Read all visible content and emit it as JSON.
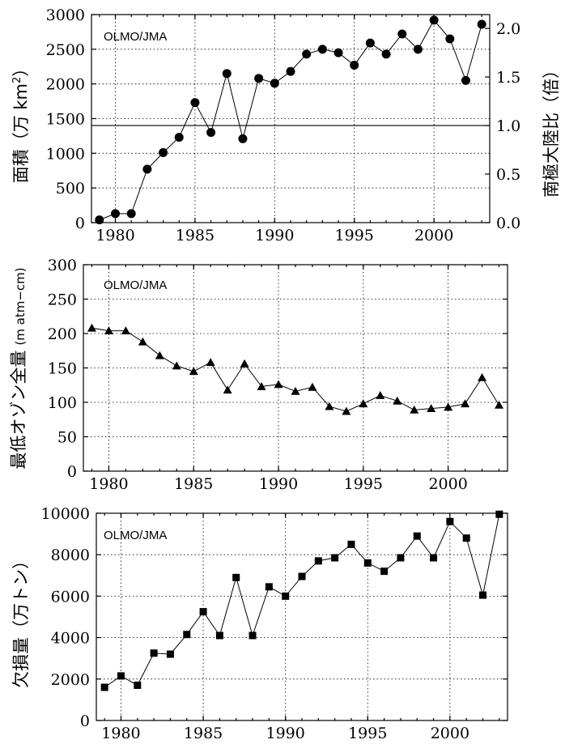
{
  "chart_data": [
    {
      "type": "line",
      "source_label": "OLMO/JMA",
      "ylabel": "面積（万 km²）",
      "ylabel_parts": {
        "main": "面積（万 km",
        "sup": "2",
        "end": "）"
      },
      "y2label": "南極大陸比（倍）",
      "marker": "circle",
      "xlim": [
        1978.5,
        2003.5
      ],
      "ylim": [
        0,
        3000
      ],
      "y2lim": [
        0,
        2.1428
      ],
      "x_ticks": [
        "1980",
        "1985",
        "1990",
        "1995",
        "2000"
      ],
      "y_ticks": [
        "0",
        "500",
        "1000",
        "1500",
        "2000",
        "2500",
        "3000"
      ],
      "y2_ticks": [
        "0.0",
        "0.5",
        "1.0",
        "1.5",
        "2.0"
      ],
      "reference_line": 1400,
      "x": [
        1979,
        1980,
        1981,
        1982,
        1983,
        1984,
        1985,
        1986,
        1987,
        1988,
        1989,
        1990,
        1991,
        1992,
        1993,
        1994,
        1995,
        1996,
        1997,
        1998,
        1999,
        2000,
        2001,
        2002,
        2003
      ],
      "values": [
        40,
        130,
        130,
        770,
        1010,
        1230,
        1730,
        1300,
        2150,
        1210,
        2080,
        2010,
        2180,
        2430,
        2500,
        2450,
        2270,
        2590,
        2430,
        2720,
        2500,
        2920,
        2650,
        2050,
        2860
      ]
    },
    {
      "type": "line",
      "source_label": "OLMO/JMA",
      "ylabel": "最低オゾン全量",
      "ylabel_unit": "(m atm−cm)",
      "marker": "triangle",
      "xlim": [
        1978.5,
        2003.5
      ],
      "ylim": [
        0,
        300
      ],
      "x_ticks": [
        "1980",
        "1985",
        "1990",
        "1995",
        "2000"
      ],
      "y_ticks": [
        "0",
        "50",
        "100",
        "150",
        "200",
        "250",
        "300"
      ],
      "x": [
        1979,
        1980,
        1981,
        1982,
        1983,
        1984,
        1985,
        1986,
        1987,
        1988,
        1989,
        1990,
        1991,
        1992,
        1993,
        1994,
        1995,
        1996,
        1997,
        1998,
        1999,
        2000,
        2001,
        2002,
        2003
      ],
      "values": [
        208,
        204,
        204,
        188,
        168,
        153,
        145,
        158,
        118,
        156,
        123,
        126,
        116,
        122,
        94,
        87,
        98,
        110,
        102,
        89,
        91,
        93,
        98,
        136,
        96
      ]
    },
    {
      "type": "line",
      "source_label": "OLMO/JMA",
      "ylabel": "欠損量（万トン）",
      "marker": "square",
      "xlim": [
        1978.5,
        2003.5
      ],
      "ylim": [
        0,
        10000
      ],
      "x_ticks": [
        "1980",
        "1985",
        "1990",
        "1995",
        "2000"
      ],
      "y_ticks": [
        "0",
        "2000",
        "4000",
        "6000",
        "8000",
        "10000"
      ],
      "x": [
        1979,
        1980,
        1981,
        1982,
        1983,
        1984,
        1985,
        1986,
        1987,
        1988,
        1989,
        1990,
        1991,
        1992,
        1993,
        1994,
        1995,
        1996,
        1997,
        1998,
        1999,
        2000,
        2001,
        2002,
        2003
      ],
      "values": [
        1600,
        2150,
        1700,
        3250,
        3200,
        4150,
        5250,
        4100,
        6900,
        4100,
        6450,
        6000,
        6950,
        7700,
        7850,
        8500,
        7600,
        7200,
        7850,
        8900,
        7850,
        9600,
        8800,
        6050,
        9950
      ]
    }
  ]
}
